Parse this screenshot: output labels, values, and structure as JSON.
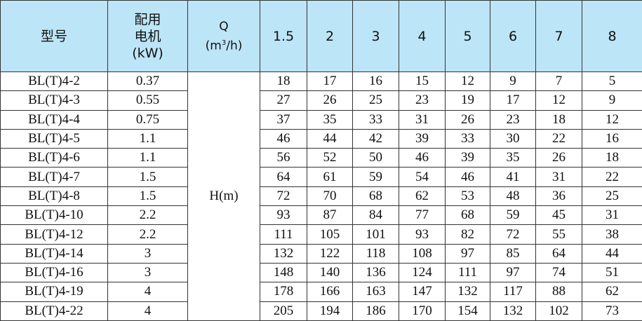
{
  "headers": {
    "model": "型号",
    "motor_line1": "配用",
    "motor_line2": "电机",
    "motor_line3": "(kW)",
    "q_line1": "Q",
    "q_unit_pre": "(m",
    "q_unit_sup": "3",
    "q_unit_post": "/h)",
    "flows": [
      "1.5",
      "2",
      "3",
      "4",
      "5",
      "6",
      "7",
      "8"
    ]
  },
  "head_label": "H(m)",
  "rows": [
    {
      "model": "BL(T)4-2",
      "power": "0.37",
      "values": [
        "18",
        "17",
        "16",
        "15",
        "12",
        "9",
        "7",
        "5"
      ]
    },
    {
      "model": "BL(T)4-3",
      "power": "0.55",
      "values": [
        "27",
        "26",
        "25",
        "23",
        "19",
        "17",
        "12",
        "9"
      ]
    },
    {
      "model": "BL(T)4-4",
      "power": "0.75",
      "values": [
        "37",
        "35",
        "33",
        "31",
        "26",
        "23",
        "18",
        "12"
      ]
    },
    {
      "model": "BL(T)4-5",
      "power": "1.1",
      "values": [
        "46",
        "44",
        "42",
        "39",
        "33",
        "30",
        "22",
        "16"
      ]
    },
    {
      "model": "BL(T)4-6",
      "power": "1.1",
      "values": [
        "56",
        "52",
        "50",
        "46",
        "39",
        "35",
        "26",
        "18"
      ]
    },
    {
      "model": "BL(T)4-7",
      "power": "1.5",
      "values": [
        "64",
        "61",
        "59",
        "54",
        "46",
        "41",
        "31",
        "22"
      ]
    },
    {
      "model": "BL(T)4-8",
      "power": "1.5",
      "values": [
        "72",
        "70",
        "68",
        "62",
        "53",
        "48",
        "36",
        "25"
      ]
    },
    {
      "model": "BL(T)4-10",
      "power": "2.2",
      "values": [
        "93",
        "87",
        "84",
        "77",
        "68",
        "59",
        "45",
        "31"
      ]
    },
    {
      "model": "BL(T)4-12",
      "power": "2.2",
      "values": [
        "111",
        "105",
        "101",
        "93",
        "82",
        "72",
        "55",
        "38"
      ]
    },
    {
      "model": "BL(T)4-14",
      "power": "3",
      "values": [
        "132",
        "122",
        "118",
        "108",
        "97",
        "85",
        "64",
        "44"
      ]
    },
    {
      "model": "BL(T)4-16",
      "power": "3",
      "values": [
        "148",
        "140",
        "136",
        "124",
        "111",
        "97",
        "74",
        "51"
      ]
    },
    {
      "model": "BL(T)4-19",
      "power": "4",
      "values": [
        "178",
        "166",
        "163",
        "147",
        "132",
        "117",
        "88",
        "62"
      ]
    },
    {
      "model": "BL(T)4-22",
      "power": "4",
      "values": [
        "205",
        "194",
        "186",
        "170",
        "154",
        "132",
        "102",
        "73"
      ]
    }
  ]
}
